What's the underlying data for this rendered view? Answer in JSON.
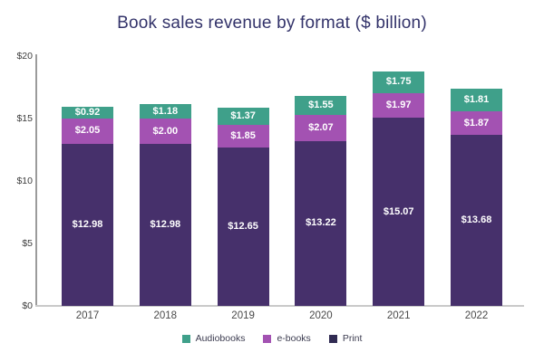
{
  "title": "Book sales revenue by format ($ billion)",
  "colors": {
    "print": "#46306B",
    "ebooks": "#A352B2",
    "audiobooks": "#3FA08A",
    "legend_print_swatch": "#302B52",
    "title_text": "#33336A",
    "axis_line": "#9B9B9B",
    "baseline": "#C9C9C9",
    "tick_text": "#3D3D3D",
    "year_text": "#4A4A4A",
    "value_text": "#FFFFFF",
    "legend_text": "#3C3C50",
    "background": "#FFFFFF"
  },
  "chart_data": {
    "type": "bar",
    "stacked": true,
    "title": "Book sales revenue by format ($ billion)",
    "xlabel": "",
    "ylabel": "",
    "ylim": [
      0,
      20
    ],
    "grid": false,
    "categories": [
      "2017",
      "2018",
      "2019",
      "2020",
      "2021",
      "2022"
    ],
    "series": [
      {
        "name": "Print",
        "color_key": "print",
        "values": [
          12.98,
          12.98,
          12.65,
          13.22,
          15.07,
          13.68
        ]
      },
      {
        "name": "e-books",
        "color_key": "ebooks",
        "values": [
          2.05,
          2.0,
          1.85,
          2.07,
          1.97,
          1.87
        ]
      },
      {
        "name": "Audiobooks",
        "color_key": "audiobooks",
        "values": [
          0.92,
          1.18,
          1.37,
          1.55,
          1.75,
          1.81
        ]
      }
    ],
    "value_labels": [
      [
        "$12.98",
        "$12.98",
        "$12.65",
        "$13.22",
        "$15.07",
        "$13.68"
      ],
      [
        "$2.05",
        "$2.00",
        "$1.85",
        "$2.07",
        "$1.97",
        "$1.87"
      ],
      [
        "$0.92",
        "$1.18",
        "$1.37",
        "$1.55",
        "$1.75",
        "$1.81"
      ]
    ],
    "yticks": [
      {
        "label": "$0",
        "value": 0
      },
      {
        "label": "$5",
        "value": 5
      },
      {
        "label": "$10",
        "value": 10
      },
      {
        "label": "$15",
        "value": 15
      },
      {
        "label": "$20",
        "value": 20
      }
    ],
    "legend_position": "bottom",
    "legend": [
      {
        "label": "Audiobooks",
        "color_key": "audiobooks"
      },
      {
        "label": "e-books",
        "color_key": "ebooks"
      },
      {
        "label": "Print",
        "color_key": "legend_print_swatch"
      }
    ]
  }
}
